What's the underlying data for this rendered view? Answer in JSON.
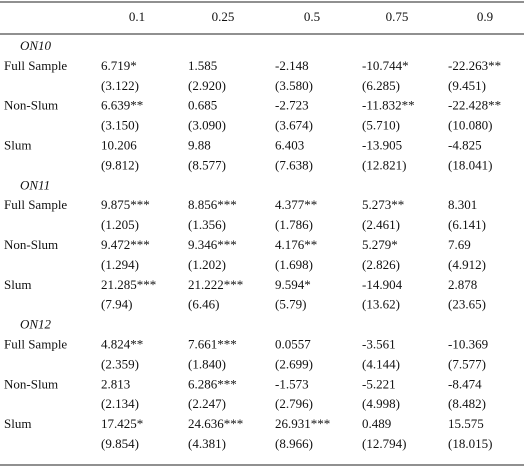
{
  "table": {
    "columns": [
      "0.1",
      "0.25",
      "0.5",
      "0.75",
      "0.9"
    ],
    "sections": [
      {
        "title": "ON10",
        "rows": [
          {
            "label": "Full Sample",
            "estimates": [
              "6.719*",
              "1.585",
              "-2.148",
              "-10.744*",
              "-22.263**"
            ],
            "std_errors": [
              "(3.122)",
              "(2.920)",
              "(3.580)",
              "(6.285)",
              "(9.451)"
            ]
          },
          {
            "label": "Non-Slum",
            "estimates": [
              "6.639**",
              "0.685",
              "-2.723",
              "-11.832**",
              "-22.428**"
            ],
            "std_errors": [
              "(3.150)",
              "(3.090)",
              "(3.674)",
              "(5.710)",
              "(10.080)"
            ]
          },
          {
            "label": "Slum",
            "estimates": [
              "10.206",
              "9.88",
              "6.403",
              "-13.905",
              "-4.825"
            ],
            "std_errors": [
              "(9.812)",
              "(8.577)",
              "(7.638)",
              "(12.821)",
              "(18.041)"
            ]
          }
        ]
      },
      {
        "title": "ON11",
        "rows": [
          {
            "label": "Full Sample",
            "estimates": [
              "9.875***",
              "8.856***",
              "4.377**",
              "5.273**",
              "8.301"
            ],
            "std_errors": [
              "(1.205)",
              "(1.356)",
              "(1.786)",
              "(2.461)",
              "(6.141)"
            ]
          },
          {
            "label": "Non-Slum",
            "estimates": [
              "9.472***",
              "9.346***",
              "4.176**",
              "5.279*",
              "7.69"
            ],
            "std_errors": [
              "(1.294)",
              "(1.202)",
              "(1.698)",
              "(2.826)",
              "(4.912)"
            ]
          },
          {
            "label": "Slum",
            "estimates": [
              "21.285***",
              "21.222***",
              "9.594*",
              "-14.904",
              "2.878"
            ],
            "std_errors": [
              "(7.94)",
              "(6.46)",
              "(5.79)",
              "(13.62)",
              "(23.65)"
            ]
          }
        ]
      },
      {
        "title": "ON12",
        "rows": [
          {
            "label": "Full Sample",
            "estimates": [
              "4.824**",
              "7.661***",
              "0.0557",
              "-3.561",
              "-10.369"
            ],
            "std_errors": [
              "(2.359)",
              "(1.840)",
              "(2.699)",
              "(4.144)",
              "(7.577)"
            ]
          },
          {
            "label": "Non-Slum",
            "estimates": [
              "2.813",
              "6.286***",
              "-1.573",
              "-5.221",
              "-8.474"
            ],
            "std_errors": [
              "(2.134)",
              "(2.247)",
              "(2.796)",
              "(4.998)",
              "(8.482)"
            ]
          },
          {
            "label": "Slum",
            "estimates": [
              "17.425*",
              "24.636***",
              "26.931***",
              "0.489",
              "15.575"
            ],
            "std_errors": [
              "(9.854)",
              "(4.381)",
              "(8.966)",
              "(12.794)",
              "(18.015)"
            ]
          }
        ]
      }
    ]
  }
}
